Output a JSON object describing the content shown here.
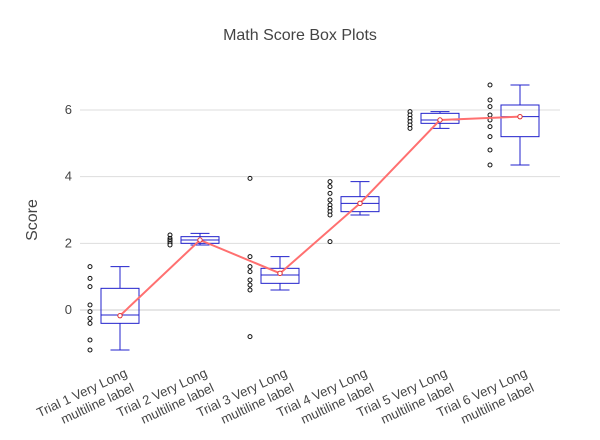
{
  "chart_data": {
    "type": "box",
    "title": "Math Score Box Plots",
    "xlabel": "",
    "ylabel": "Score",
    "ylim": [
      -1.5,
      7.5
    ],
    "yticks": [
      0,
      2,
      4,
      6
    ],
    "grid": true,
    "legend": "none",
    "colors": {
      "box": "#2020cc",
      "outlier": "#111111",
      "trend": "#ff7070"
    },
    "categories": [
      [
        "Trial 1 Very Long",
        "multiline label"
      ],
      [
        "Trial 2 Very Long",
        "multiline label"
      ],
      [
        "Trial 3 Very Long",
        "multiline label"
      ],
      [
        "Trial 4 Very Long",
        "multiline label"
      ],
      [
        "Trial 5 Very Long",
        "multiline label"
      ],
      [
        "Trial 6 Very Long",
        "multiline label"
      ]
    ],
    "boxes": [
      {
        "q1": -0.4,
        "median": -0.15,
        "q3": 0.65,
        "whisker_low": -1.2,
        "whisker_high": 1.3,
        "mean": -0.17,
        "outliers": [
          1.3,
          0.95,
          0.7,
          0.15,
          -0.05,
          -0.25,
          -0.4,
          -0.9,
          -1.2
        ]
      },
      {
        "q1": 2.0,
        "median": 2.1,
        "q3": 2.2,
        "whisker_low": 1.95,
        "whisker_high": 2.3,
        "mean": 2.1,
        "outliers": [
          2.25,
          2.15,
          2.1,
          2.05,
          2.0,
          1.95
        ]
      },
      {
        "q1": 0.8,
        "median": 1.05,
        "q3": 1.25,
        "whisker_low": 0.6,
        "whisker_high": 1.6,
        "mean": 1.1,
        "outliers": [
          3.95,
          1.6,
          1.3,
          1.15,
          0.9,
          0.75,
          0.6,
          -0.8
        ]
      },
      {
        "q1": 2.95,
        "median": 3.2,
        "q3": 3.4,
        "whisker_low": 2.85,
        "whisker_high": 3.85,
        "mean": 3.2,
        "outliers": [
          3.85,
          3.7,
          3.5,
          3.3,
          3.15,
          3.05,
          2.95,
          2.85,
          2.05
        ]
      },
      {
        "q1": 5.6,
        "median": 5.7,
        "q3": 5.9,
        "whisker_low": 5.45,
        "whisker_high": 5.95,
        "mean": 5.7,
        "outliers": [
          5.95,
          5.85,
          5.75,
          5.65,
          5.55,
          5.45
        ]
      },
      {
        "q1": 5.2,
        "median": 5.8,
        "q3": 6.15,
        "whisker_low": 4.35,
        "whisker_high": 6.75,
        "mean": 5.8,
        "outliers": [
          6.75,
          6.3,
          6.1,
          5.85,
          5.7,
          5.5,
          5.2,
          4.8,
          4.35
        ]
      }
    ]
  }
}
